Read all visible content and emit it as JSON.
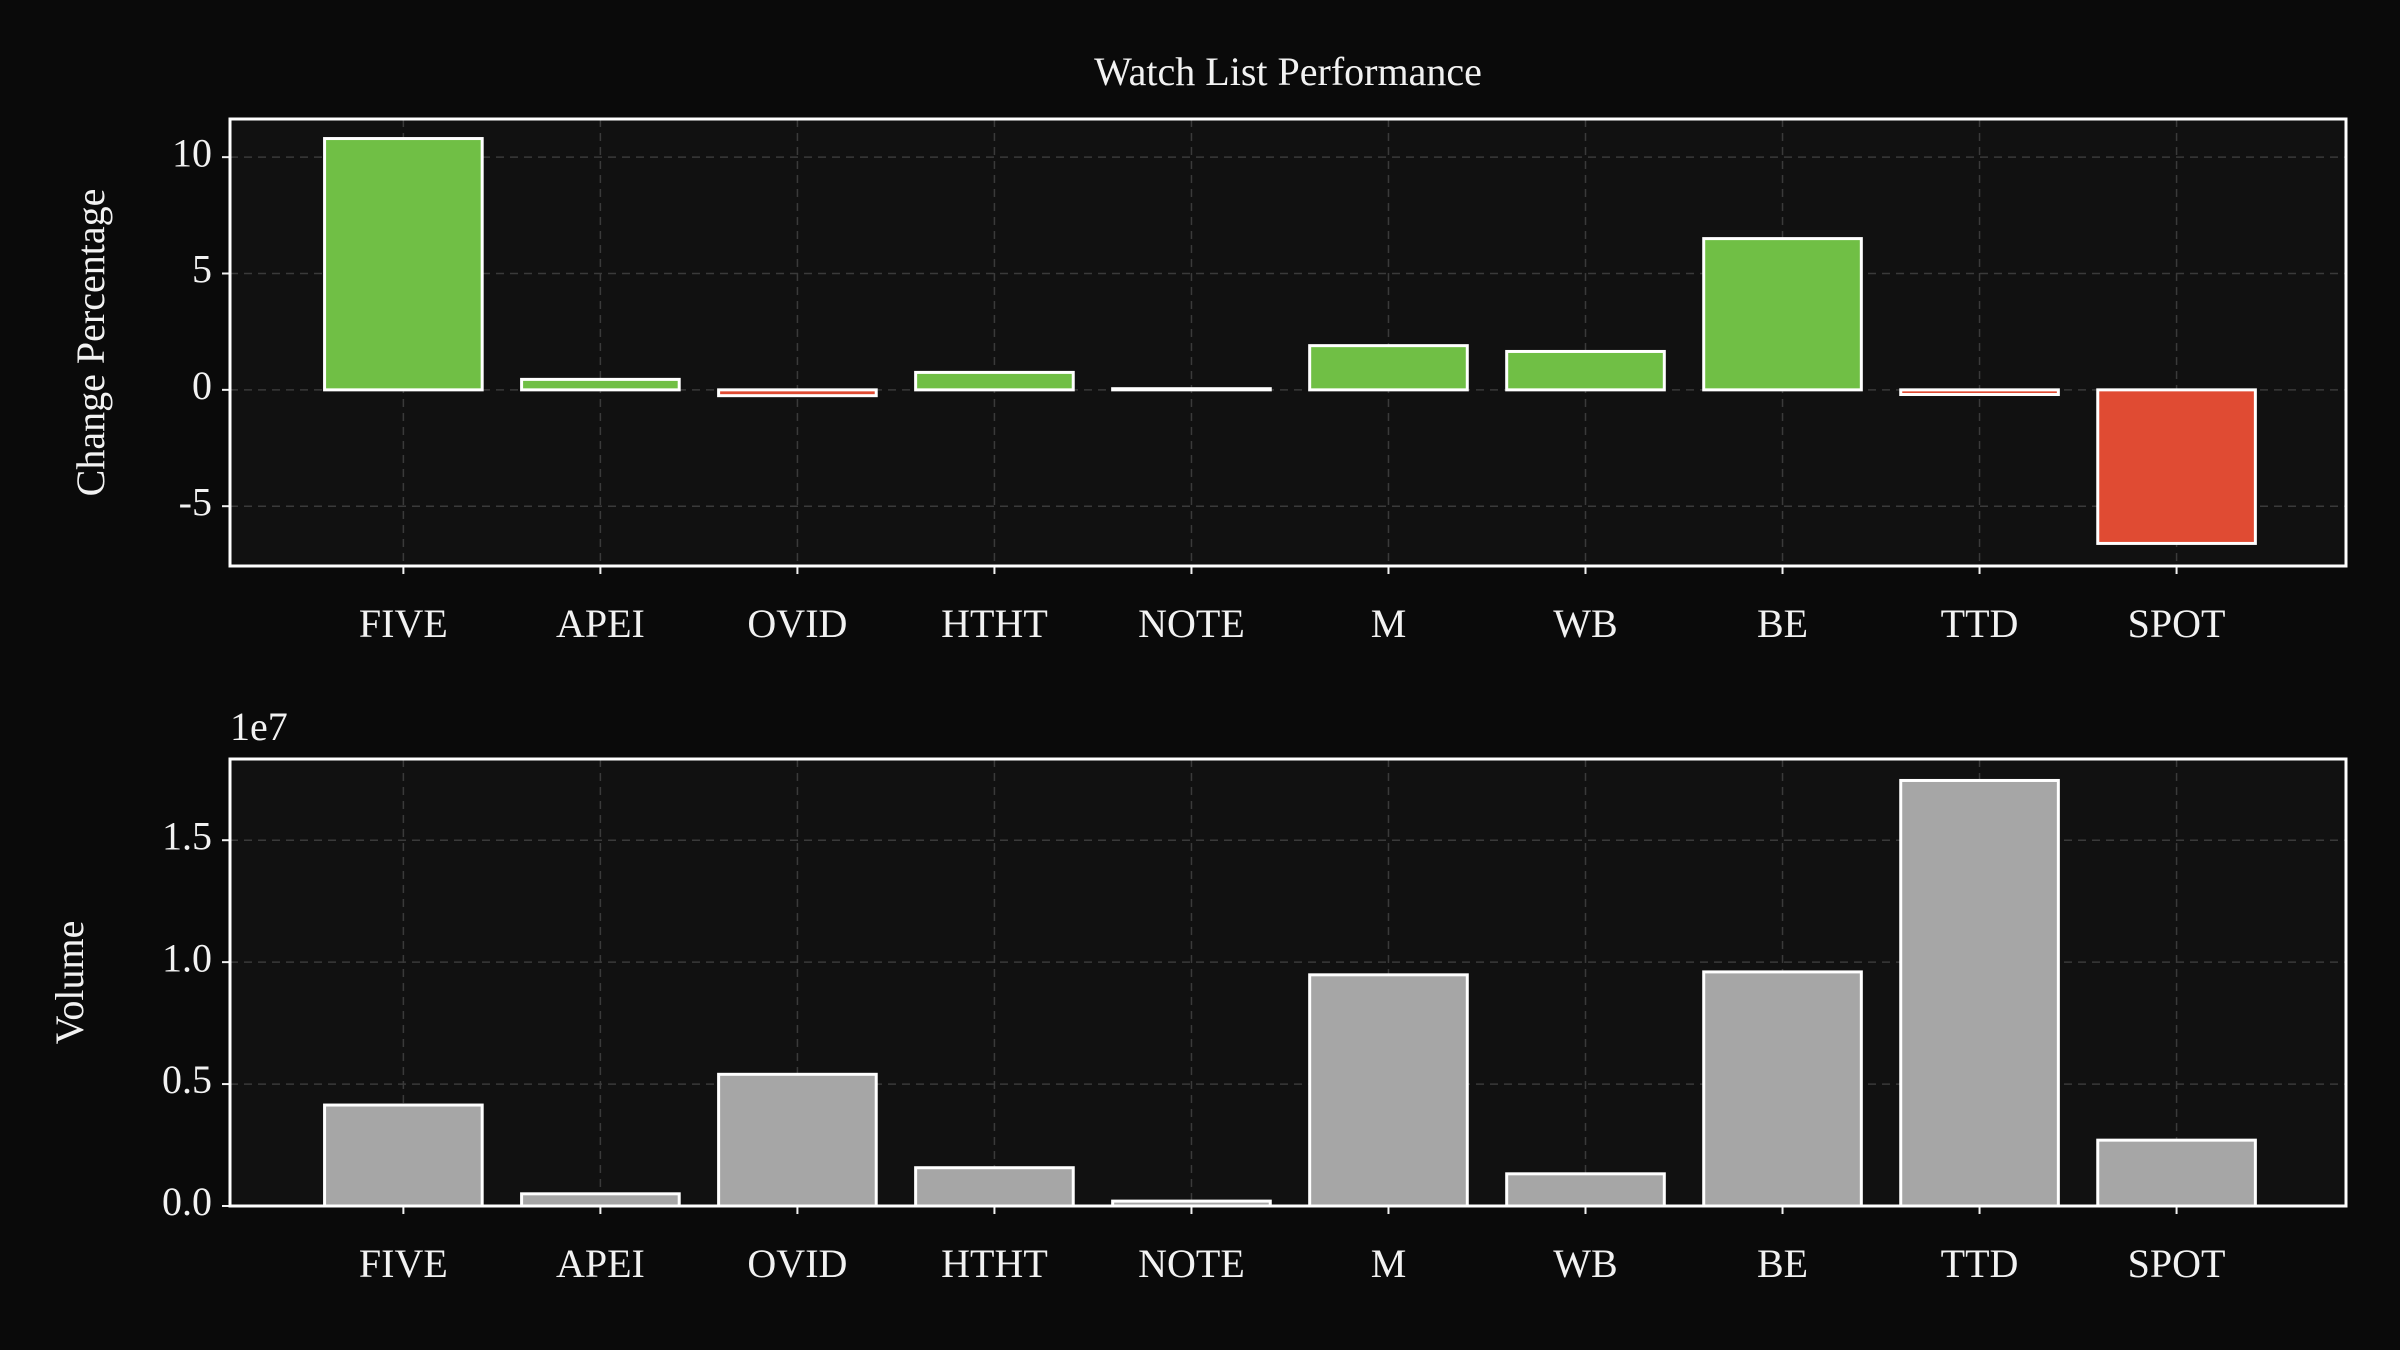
{
  "chart_data": [
    {
      "type": "bar",
      "title": "Watch List Performance",
      "y_label": "Change Percentage",
      "categories": [
        "FIVE",
        "APEI",
        "OVID",
        "HTHT",
        "NOTE",
        "M",
        "WB",
        "BE",
        "TTD",
        "SPOT"
      ],
      "values": [
        10.8,
        0.45,
        -0.25,
        0.75,
        0.05,
        1.9,
        1.65,
        6.5,
        -0.2,
        -6.6
      ],
      "colors": [
        "#70bf45",
        "#70bf45",
        "#e04b33",
        "#70bf45",
        "#70bf45",
        "#70bf45",
        "#70bf45",
        "#70bf45",
        "#e04b33",
        "#e04b33"
      ],
      "ylim": [
        -7.57,
        11.64
      ],
      "yticks": [
        -5,
        0,
        5,
        10
      ],
      "grid": true
    },
    {
      "type": "bar",
      "y_label": "Volume",
      "offset_label": "1e7",
      "categories": [
        "FIVE",
        "APEI",
        "OVID",
        "HTHT",
        "NOTE",
        "M",
        "WB",
        "BE",
        "TTD",
        "SPOT"
      ],
      "values": [
        0.414,
        0.05,
        0.54,
        0.157,
        0.02,
        0.948,
        0.132,
        0.96,
        1.745,
        0.27
      ],
      "colors": [
        "#a6a6a6",
        "#a6a6a6",
        "#a6a6a6",
        "#a6a6a6",
        "#a6a6a6",
        "#a6a6a6",
        "#a6a6a6",
        "#a6a6a6",
        "#a6a6a6",
        "#a6a6a6"
      ],
      "ylim": [
        0,
        1.833
      ],
      "yticks": [
        {
          "value": 0,
          "label": "0.0"
        },
        {
          "value": 0.5,
          "label": "0.5"
        },
        {
          "value": 1,
          "label": "1.0"
        },
        {
          "value": 1.5,
          "label": "1.5"
        }
      ],
      "grid": true
    }
  ]
}
